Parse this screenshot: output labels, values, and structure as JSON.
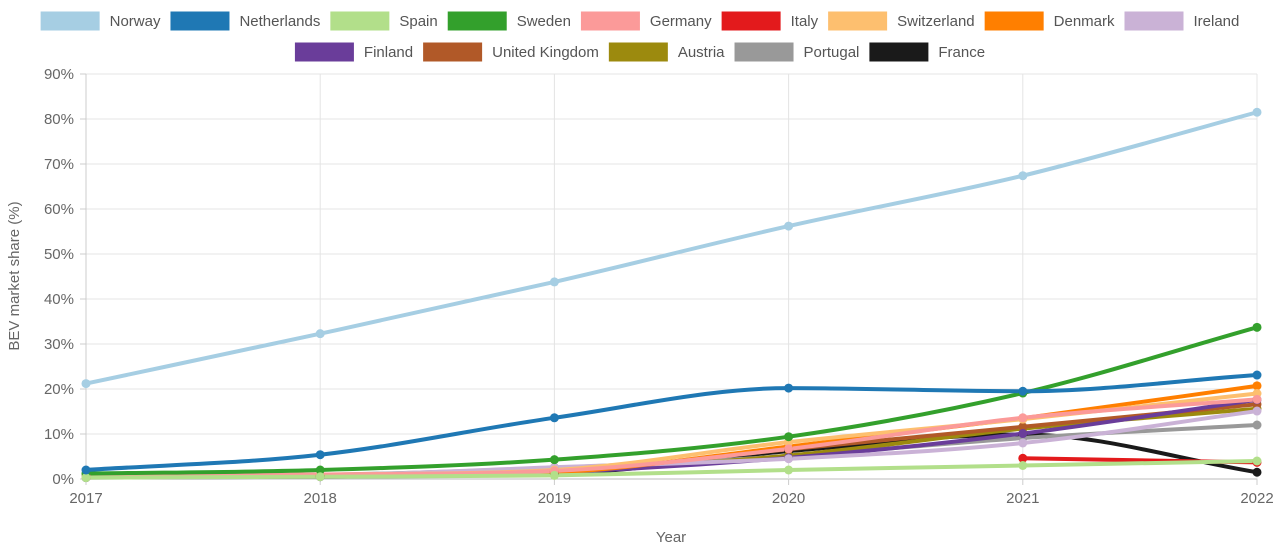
{
  "chart_data": {
    "type": "line",
    "title": "",
    "xlabel": "Year",
    "ylabel": "BEV market share (%)",
    "x": [
      "2017",
      "2018",
      "2019",
      "2020",
      "2021",
      "2022"
    ],
    "ylim": [
      0,
      90
    ],
    "y_ticks": [
      "0%",
      "10%",
      "20%",
      "30%",
      "40%",
      "50%",
      "60%",
      "70%",
      "80%",
      "90%"
    ],
    "grid": true,
    "legend_position": "top",
    "series": [
      {
        "name": "Norway",
        "color": "#a6cee3",
        "values": [
          21.2,
          32.3,
          43.8,
          56.2,
          67.4,
          81.5
        ]
      },
      {
        "name": "Netherlands",
        "color": "#1f78b4",
        "values": [
          2.0,
          5.4,
          13.6,
          20.2,
          19.5,
          23.1
        ]
      },
      {
        "name": "Spain",
        "color": "#b2df8a",
        "values": [
          0.3,
          0.5,
          0.8,
          2.0,
          3.0,
          4.0
        ]
      },
      {
        "name": "Sweden",
        "color": "#33a02c",
        "values": [
          1.2,
          2.0,
          4.3,
          9.4,
          19.1,
          33.7
        ]
      },
      {
        "name": "Germany",
        "color": "#fb9a99",
        "values": [
          0.7,
          1.0,
          1.8,
          6.7,
          13.6,
          17.7
        ]
      },
      {
        "name": "Italy",
        "color": "#e31a1c",
        "values": [
          null,
          null,
          null,
          null,
          4.6,
          3.7
        ]
      },
      {
        "name": "Switzerland",
        "color": "#fdbf6f",
        "values": [
          0.6,
          1.0,
          2.0,
          8.2,
          13.3,
          19.0
        ]
      },
      {
        "name": "Denmark",
        "color": "#ff7f00",
        "values": [
          0.4,
          0.8,
          1.5,
          7.2,
          13.5,
          20.7
        ]
      },
      {
        "name": "Ireland",
        "color": "#cab2d6",
        "values": [
          0.5,
          0.8,
          2.6,
          4.5,
          8.0,
          15.1
        ]
      },
      {
        "name": "Finland",
        "color": "#6a3d9a",
        "values": [
          0.3,
          0.5,
          1.5,
          4.7,
          10.1,
          17.6
        ]
      },
      {
        "name": "United Kingdom",
        "color": "#b15928",
        "values": [
          0.5,
          0.7,
          1.6,
          6.6,
          11.6,
          16.6
        ]
      },
      {
        "name": "Austria",
        "color": "#9c8a0e",
        "values": [
          0.6,
          0.9,
          1.8,
          5.2,
          11.2,
          15.6
        ]
      },
      {
        "name": "Portugal",
        "color": "#999999",
        "values": [
          0.5,
          0.9,
          2.5,
          5.1,
          9.1,
          12.0
        ]
      },
      {
        "name": "France",
        "color": "#1a1a1a",
        "values": [
          0.7,
          0.8,
          1.2,
          6.2,
          9.9,
          1.5
        ]
      }
    ]
  }
}
